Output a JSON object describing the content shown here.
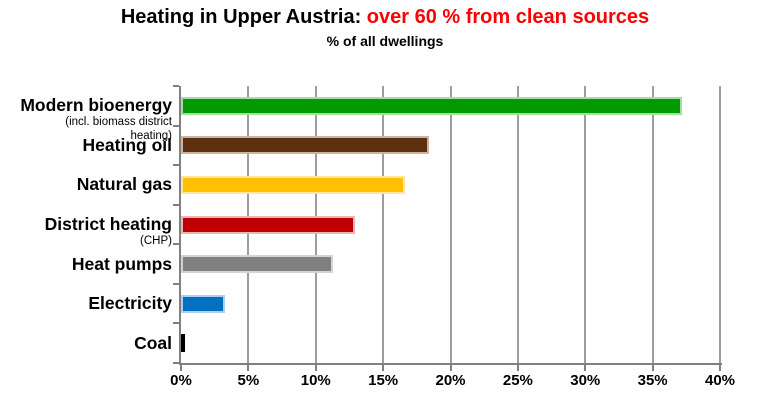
{
  "title": {
    "black_part": "Heating in Upper Austria:",
    "red_part": "over 60 % from clean sources",
    "red_color": "#ff0000"
  },
  "subtitle": "% of all dwellings",
  "chart_data": {
    "type": "bar",
    "orientation": "horizontal",
    "title": "Heating in Upper Austria: over 60 % from clean sources",
    "subtitle": "% of all dwellings",
    "xlabel": "",
    "ylabel": "",
    "xlim": [
      0,
      40
    ],
    "x_tick_labels": [
      "0%",
      "5%",
      "10%",
      "15%",
      "20%",
      "25%",
      "30%",
      "35%",
      "40%"
    ],
    "grid": true,
    "legend": false,
    "categories": [
      "Modern bioenergy",
      "Heating oil",
      "Natural gas",
      "District heating",
      "Heat pumps",
      "Electricity",
      "Coal"
    ],
    "values": [
      37.2,
      18.4,
      16.6,
      12.9,
      11.3,
      3.3,
      0.2
    ],
    "bars": [
      {
        "label": "Modern bioenergy",
        "sublabel": "(incl. biomass district\nheating)",
        "value": 37.2,
        "color": "#009a00",
        "border": "#a9dba9"
      },
      {
        "label": "Heating oil",
        "sublabel": "",
        "value": 18.4,
        "color": "#5e2f0e",
        "border": "#cab5a5"
      },
      {
        "label": "Natural gas",
        "sublabel": "",
        "value": 16.6,
        "color": "#ffc000",
        "border": "#ffe699"
      },
      {
        "label": "District heating",
        "sublabel": "(CHP)",
        "value": 12.9,
        "color": "#c00000",
        "border": "#ecb5b5"
      },
      {
        "label": "Heat pumps",
        "sublabel": "",
        "value": 11.3,
        "color": "#808080",
        "border": "#d4d4d4"
      },
      {
        "label": "Electricity",
        "sublabel": "",
        "value": 3.3,
        "color": "#0070c0",
        "border": "#abcfef"
      },
      {
        "label": "Coal",
        "sublabel": "",
        "value": 0.2,
        "color": "#000000",
        "border": "#000000"
      }
    ],
    "axis_color": "#808080",
    "gridline_color": "#9d9d9d"
  }
}
